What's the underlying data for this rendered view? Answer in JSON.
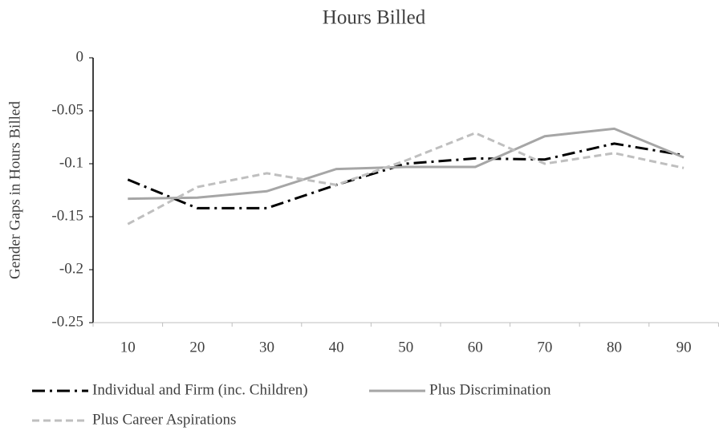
{
  "chart_data": {
    "type": "line",
    "title": "Hours Billed",
    "y_label": "Gender Gaps in Hours Billed",
    "categories": [
      "10",
      "20",
      "30",
      "40",
      "50",
      "60",
      "70",
      "80",
      "90"
    ],
    "series": [
      {
        "name": "Individual and Firm (inc. Children)",
        "color": "#000000",
        "style": "dash-dot",
        "values": [
          -0.115,
          -0.142,
          -0.142,
          -0.12,
          -0.1,
          -0.095,
          -0.096,
          -0.081,
          -0.092
        ]
      },
      {
        "name": "Plus Discrimination",
        "color": "#a6a6a6",
        "style": "solid",
        "values": [
          -0.133,
          -0.132,
          -0.126,
          -0.105,
          -0.103,
          -0.103,
          -0.074,
          -0.067,
          -0.094
        ]
      },
      {
        "name": "Plus Career Aspirations",
        "color": "#bfbfbf",
        "style": "dash",
        "values": [
          -0.157,
          -0.122,
          -0.109,
          -0.12,
          -0.097,
          -0.071,
          -0.1,
          -0.09,
          -0.104
        ]
      }
    ],
    "ylim": [
      -0.25,
      0
    ],
    "yticks": [
      0,
      -0.05,
      -0.1,
      -0.15,
      -0.2,
      -0.25
    ],
    "grid": false,
    "legend": "bottom"
  }
}
